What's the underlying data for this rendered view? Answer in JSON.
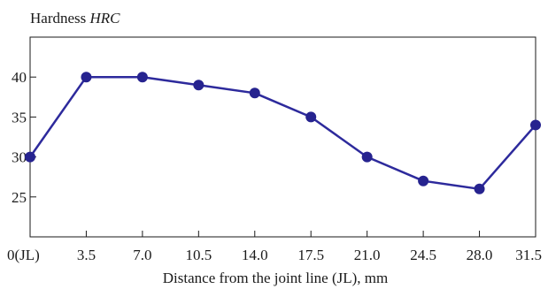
{
  "chart_data": {
    "type": "line",
    "ylabel_prefix": "Hardness ",
    "ylabel_italic": "HRC",
    "xlabel": "Distance from the joint line (JL), mm",
    "categories": [
      "0(JL)",
      "3.5",
      "7.0",
      "10.5",
      "14.0",
      "17.5",
      "21.0",
      "24.5",
      "28.0",
      "31.5"
    ],
    "x": [
      0,
      3.5,
      7.0,
      10.5,
      14.0,
      17.5,
      21.0,
      24.5,
      28.0,
      31.5
    ],
    "yticks": [
      "25",
      "30",
      "35",
      "40"
    ],
    "ylim": [
      20,
      45
    ],
    "xlim": [
      0,
      31.5
    ],
    "grid": false,
    "series": [
      {
        "values": [
          30,
          40,
          40,
          39,
          38,
          35,
          30,
          27,
          26,
          34
        ]
      }
    ],
    "line_color": "#2d2a9c",
    "marker_color": "#26238f"
  }
}
